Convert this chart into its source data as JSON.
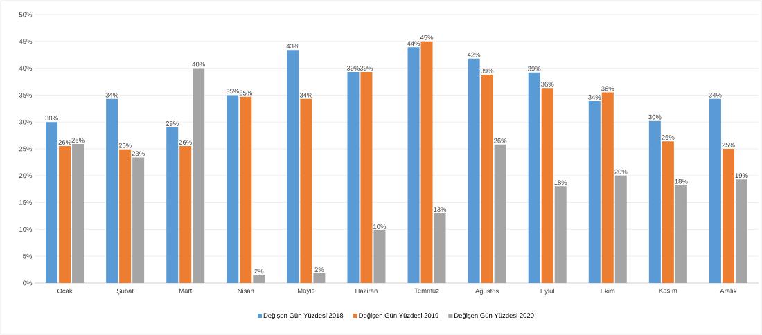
{
  "chart_data": {
    "type": "bar",
    "categories": [
      "Ocak",
      "Şubat",
      "Mart",
      "Nisan",
      "Mayıs",
      "Haziran",
      "Temmuz",
      "Ağustos",
      "Eylül",
      "Ekim",
      "Kasım",
      "Aralık"
    ],
    "series": [
      {
        "name": "Değişen Gün Yüzdesi 2018",
        "color": "#5b9bd5",
        "values": [
          30.0,
          34.3,
          29.0,
          35.0,
          43.4,
          39.3,
          43.9,
          41.8,
          39.2,
          33.9,
          30.2,
          34.3
        ],
        "value_labels": [
          "30%",
          "34%",
          "29%",
          "35%",
          "43%",
          "39%",
          "44%",
          "42%",
          "39%",
          "34%",
          "30%",
          "34%"
        ]
      },
      {
        "name": "Değişen Gün Yüzdesi 2019",
        "color": "#ed7d31",
        "values": [
          25.5,
          24.9,
          25.5,
          34.7,
          34.3,
          39.3,
          45.0,
          38.8,
          36.3,
          35.5,
          26.4,
          25.0
        ],
        "value_labels": [
          "26%",
          "25%",
          "26%",
          "35%",
          "34%",
          "39%",
          "45%",
          "39%",
          "36%",
          "36%",
          "26%",
          "25%"
        ]
      },
      {
        "name": "Değişen Gün Yüzdesi 2020",
        "color": "#a5a5a5",
        "values": [
          25.9,
          23.4,
          40.0,
          1.5,
          1.8,
          9.8,
          13.0,
          25.8,
          18.0,
          20.0,
          18.2,
          19.3
        ],
        "value_labels": [
          "26%",
          "23%",
          "40%",
          "2%",
          "2%",
          "10%",
          "13%",
          "26%",
          "18%",
          "20%",
          "18%",
          "19%"
        ]
      }
    ],
    "ylim": [
      0,
      50
    ],
    "yticks": [
      {
        "value": 0,
        "label": "0%"
      },
      {
        "value": 5,
        "label": "5%"
      },
      {
        "value": 10,
        "label": "10%"
      },
      {
        "value": 15,
        "label": "15%"
      },
      {
        "value": 20,
        "label": "20%"
      },
      {
        "value": 25,
        "label": "25%"
      },
      {
        "value": 30,
        "label": "30%"
      },
      {
        "value": 35,
        "label": "35%"
      },
      {
        "value": 40,
        "label": "40%"
      },
      {
        "value": 45,
        "label": "45%"
      },
      {
        "value": 50,
        "label": "50%"
      }
    ],
    "grid": "y",
    "legend": "bottom"
  }
}
